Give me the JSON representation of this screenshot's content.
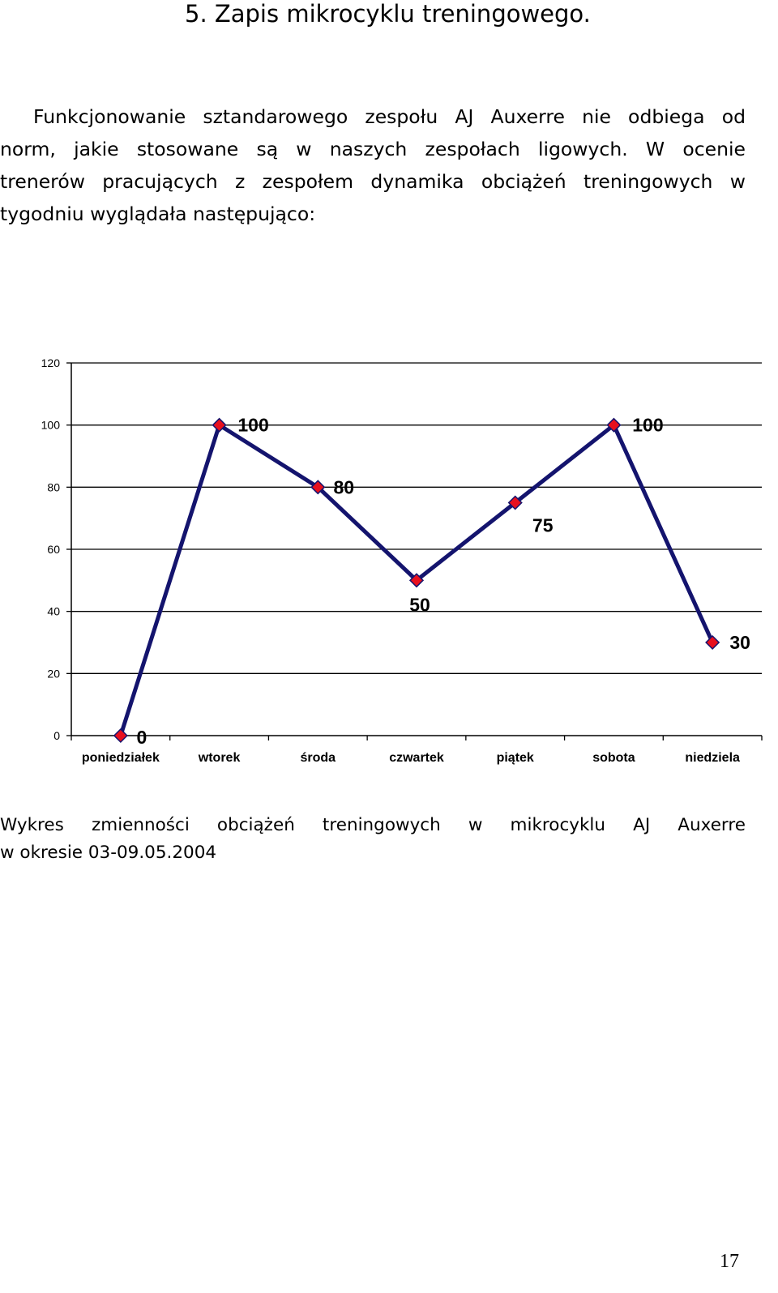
{
  "heading": "5. Zapis mikrocyklu treningowego.",
  "paragraph_lines": [
    "Funkcjonowanie sztandarowego zespołu AJ Auxerre nie odbiega od",
    "norm, jakie stosowane są w naszych zespołach ligowych. W ocenie",
    "trenerów pracujących z zespołem dynamika obciążeń treningowych w",
    "tygodniu wyglądała następująco:"
  ],
  "chart_data": {
    "type": "line",
    "categories": [
      "poniedziałek",
      "wtorek",
      "środa",
      "czwartek",
      "piątek",
      "sobota",
      "niedziela"
    ],
    "values": [
      0,
      100,
      80,
      50,
      75,
      100,
      30
    ],
    "data_labels": [
      "0",
      "100",
      "80",
      "50",
      "75",
      "100",
      "30"
    ],
    "yticks": [
      "0",
      "20",
      "40",
      "60",
      "80",
      "100",
      "120"
    ],
    "ylim": [
      0,
      120
    ],
    "grid": true,
    "line_color": "#14146e",
    "marker_color": "#e8101e",
    "legend": "none"
  },
  "caption_lines": [
    "Wykres zmienności obciążeń treningowych w mikrocyklu AJ Auxerre",
    "w okresie 03-09.05.2004"
  ],
  "page_number": "17"
}
